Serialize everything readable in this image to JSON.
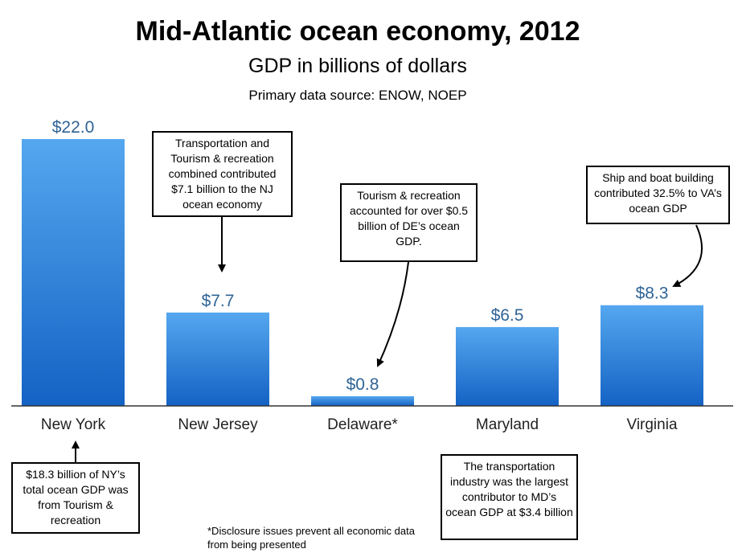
{
  "chart_data": {
    "type": "bar",
    "title": "Mid-Atlantic ocean economy, 2012",
    "subtitle": "GDP in billions of dollars",
    "source": "Primary data source: ENOW, NOEP",
    "categories": [
      "New York",
      "New Jersey",
      "Delaware*",
      "Maryland",
      "Virginia"
    ],
    "values": [
      22.0,
      7.7,
      0.8,
      6.5,
      8.3
    ],
    "value_labels": [
      "$22.0",
      "$7.7",
      "$0.8",
      "$6.5",
      "$8.3"
    ],
    "ylim": [
      0,
      22
    ],
    "grid": false,
    "xlabel": "",
    "ylabel": "",
    "bar_color_top": "#55a7ef",
    "bar_color_bottom": "#1462c4",
    "value_label_color": "#2f6496",
    "annotations": {
      "new_york": "$18.3 billion of NY’s total ocean GDP was from Tourism & recreation",
      "new_jersey": "Transportation and Tourism & recreation combined contributed $7.1 billion to the NJ ocean economy",
      "delaware": "Tourism & recreation accounted for over $0.5 billion of DE’s ocean GDP.",
      "maryland": "The transportation industry was the largest contributor to MD’s ocean GDP at $3.4 billion",
      "virginia": "Ship and boat building contributed 32.5% to VA’s ocean GDP"
    },
    "footnote": "*Disclosure issues prevent all economic data from being presented"
  }
}
